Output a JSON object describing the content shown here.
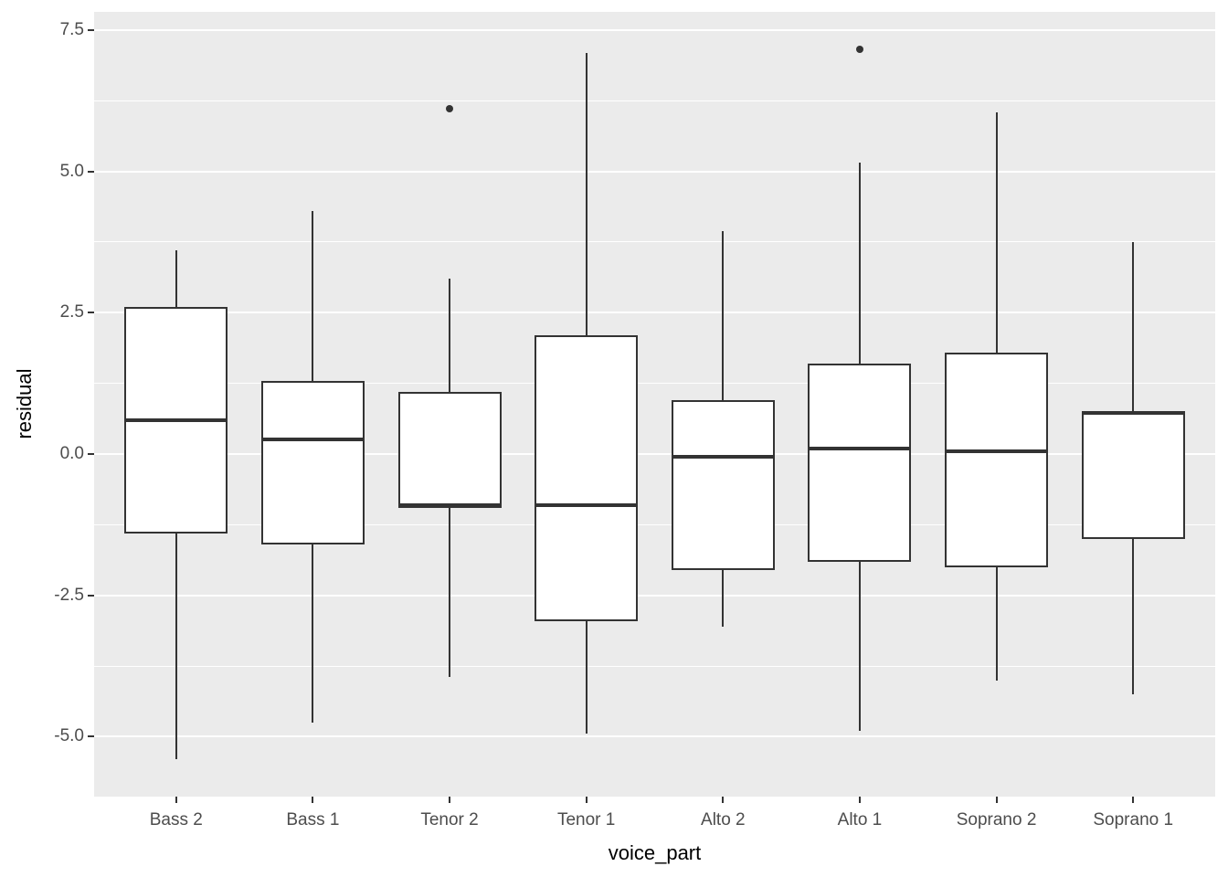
{
  "chart_data": {
    "type": "boxplot",
    "title": "",
    "xlabel": "voice_part",
    "ylabel": "residual",
    "categories": [
      "Bass 2",
      "Bass 1",
      "Tenor 2",
      "Tenor 1",
      "Alto 2",
      "Alto 1",
      "Soprano 2",
      "Soprano 1"
    ],
    "series": [
      {
        "category": "Bass 2",
        "whisker_low": -5.4,
        "q1": -1.4,
        "median": 0.6,
        "q3": 2.6,
        "whisker_high": 3.6,
        "outliers": []
      },
      {
        "category": "Bass 1",
        "whisker_low": -4.75,
        "q1": -1.6,
        "median": 0.25,
        "q3": 1.3,
        "whisker_high": 4.3,
        "outliers": []
      },
      {
        "category": "Tenor 2",
        "whisker_low": -3.95,
        "q1": -0.95,
        "median": -0.9,
        "q3": 1.1,
        "whisker_high": 3.1,
        "outliers": [
          6.1
        ]
      },
      {
        "category": "Tenor 1",
        "whisker_low": -4.95,
        "q1": -2.95,
        "median": -0.9,
        "q3": 2.1,
        "whisker_high": 7.1,
        "outliers": []
      },
      {
        "category": "Alto 2",
        "whisker_low": -3.05,
        "q1": -2.05,
        "median": -0.05,
        "q3": 0.95,
        "whisker_high": 3.95,
        "outliers": []
      },
      {
        "category": "Alto 1",
        "whisker_low": -4.9,
        "q1": -1.9,
        "median": 0.1,
        "q3": 1.6,
        "whisker_high": 5.15,
        "outliers": [
          7.15
        ]
      },
      {
        "category": "Soprano 2",
        "whisker_low": -4.0,
        "q1": -2.0,
        "median": 0.05,
        "q3": 1.8,
        "whisker_high": 6.05,
        "outliers": []
      },
      {
        "category": "Soprano 1",
        "whisker_low": -4.25,
        "q1": -1.5,
        "median": 0.72,
        "q3": 0.75,
        "whisker_high": 3.75,
        "outliers": []
      }
    ],
    "y_axis": {
      "ticks": [
        {
          "label": "7.5",
          "value": 7.5
        },
        {
          "label": "5.0",
          "value": 5.0
        },
        {
          "label": "2.5",
          "value": 2.5
        },
        {
          "label": "0.0",
          "value": 0.0
        },
        {
          "label": "-2.5",
          "value": -2.5
        },
        {
          "label": "-5.0",
          "value": -5.0
        }
      ],
      "minor_gridlines": [
        6.25,
        3.75,
        1.25,
        -1.25,
        -3.75
      ],
      "ylim": [
        -6.06,
        7.82
      ]
    },
    "layout_hints": {
      "grid": "major-and-minor, white on gray panel",
      "legend": "none"
    },
    "colors": {
      "panel_background": "#EBEBEB",
      "gridline": "#FFFFFF",
      "box_fill": "#FFFFFF",
      "box_stroke": "#333333",
      "outlier": "#333333",
      "tick_label": "#4D4D4D",
      "axis_title": "#000000"
    }
  }
}
